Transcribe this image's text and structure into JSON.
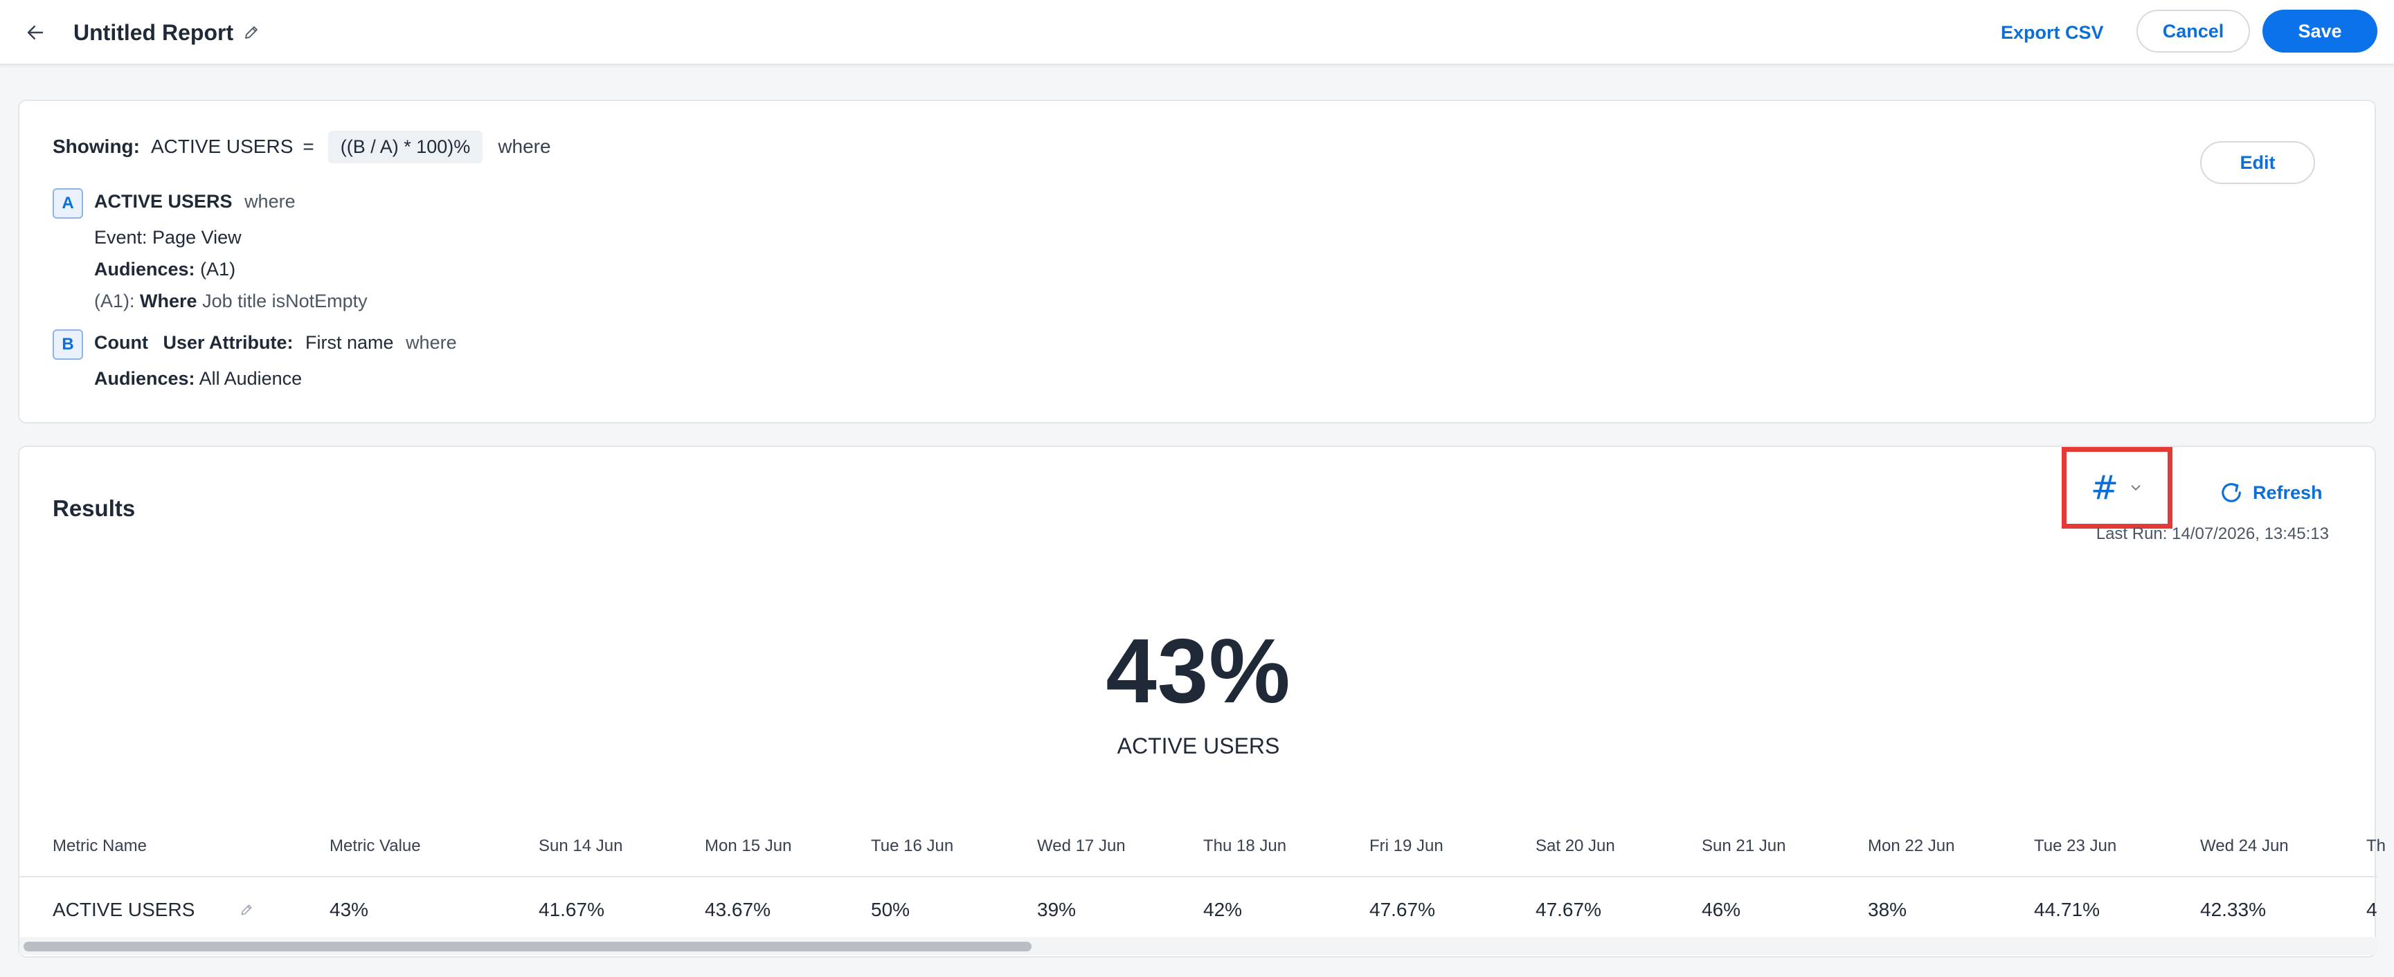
{
  "header": {
    "title": "Untitled Report",
    "export_label": "Export CSV",
    "cancel_label": "Cancel",
    "save_label": "Save"
  },
  "definition": {
    "showing_label": "Showing:",
    "metric_name": "ACTIVE USERS",
    "equals": "=",
    "formula": "((B / A) * 100)%",
    "where": "where",
    "edit_label": "Edit",
    "query_a": {
      "badge": "A",
      "name": "ACTIVE USERS",
      "where": "where",
      "event": "Event: Page View",
      "audiences_label": "Audiences:",
      "audiences_value": "(A1)",
      "filter_prefix": "(A1):",
      "filter_where": "Where",
      "filter_text": "Job title isNotEmpty"
    },
    "query_b": {
      "badge": "B",
      "count": "Count",
      "attr_label": "User Attribute:",
      "attr_value": "First name",
      "where": "where",
      "audiences_label": "Audiences:",
      "audiences_value": "All Audience"
    }
  },
  "results": {
    "title": "Results",
    "format_symbol": "#",
    "refresh_label": "Refresh",
    "last_run": "Last Run: 14/07/2026, 13:45:13",
    "big_value": "43%",
    "big_label": "ACTIVE USERS",
    "table": {
      "headers": [
        "Metric Name",
        "Metric Value",
        "Sun 14 Jun",
        "Mon 15 Jun",
        "Tue 16 Jun",
        "Wed 17 Jun",
        "Thu 18 Jun",
        "Fri 19 Jun",
        "Sat 20 Jun",
        "Sun 21 Jun",
        "Mon 22 Jun",
        "Tue 23 Jun",
        "Wed 24 Jun",
        "Th"
      ],
      "row": [
        "ACTIVE USERS",
        "43%",
        "41.67%",
        "43.67%",
        "50%",
        "39%",
        "42%",
        "47.67%",
        "47.67%",
        "46%",
        "38%",
        "44.71%",
        "42.33%",
        "4"
      ]
    }
  },
  "colors": {
    "accent": "#0b72ea",
    "link": "#0b6fd9",
    "highlight_box": "#e53935"
  },
  "icons": {
    "back": "arrow-left-icon",
    "edit": "pencil-icon",
    "refresh": "refresh-icon",
    "dropdown": "chevron-down-icon"
  }
}
